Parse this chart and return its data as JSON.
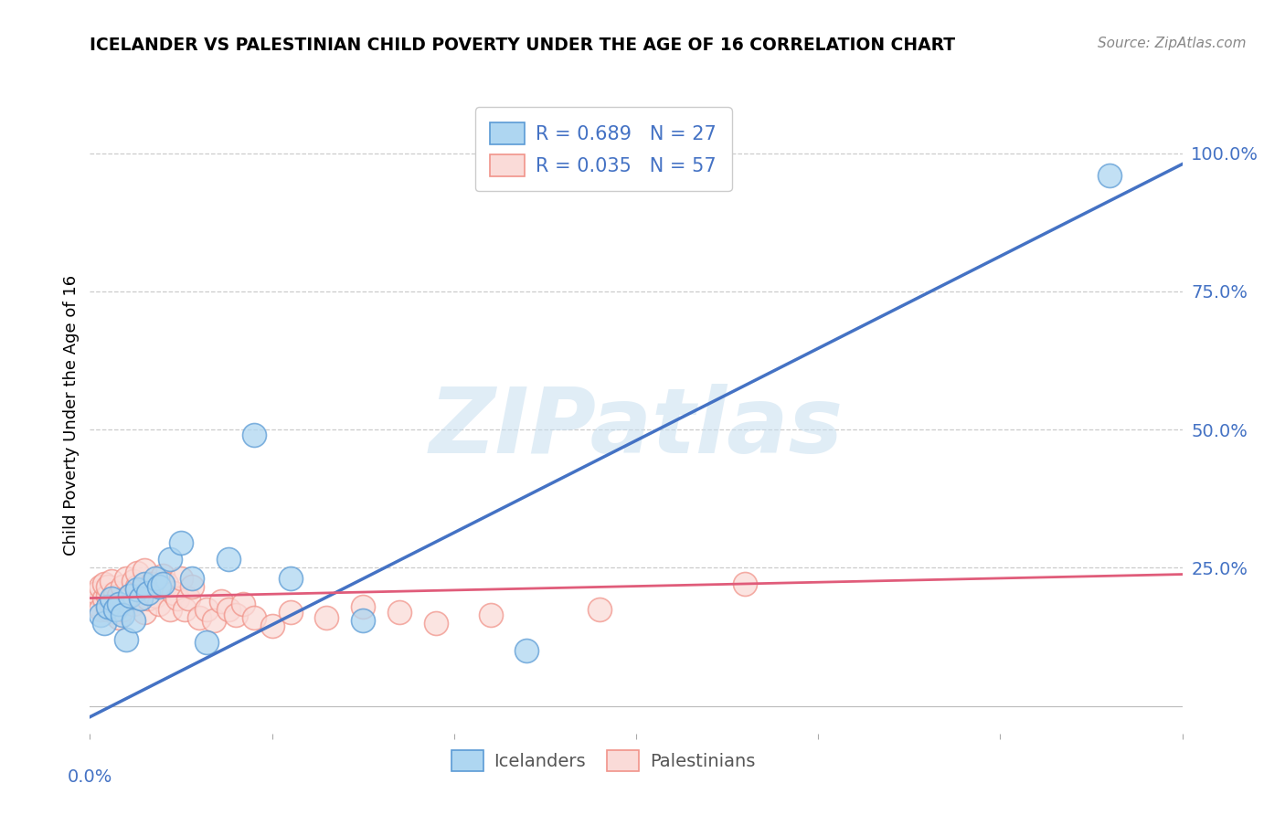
{
  "title": "ICELANDER VS PALESTINIAN CHILD POVERTY UNDER THE AGE OF 16 CORRELATION CHART",
  "source": "Source: ZipAtlas.com",
  "ylabel": "Child Poverty Under the Age of 16",
  "ytick_labels": [
    "0.0%",
    "25.0%",
    "50.0%",
    "75.0%",
    "100.0%"
  ],
  "ytick_positions": [
    0.0,
    0.25,
    0.5,
    0.75,
    1.0
  ],
  "xlim": [
    0.0,
    0.3
  ],
  "ylim": [
    -0.05,
    1.1
  ],
  "icelander_R": 0.689,
  "icelander_N": 27,
  "palestinian_R": 0.035,
  "palestinian_N": 57,
  "icelander_color": "#AED6F1",
  "icelander_edge_color": "#5B9BD5",
  "icelander_line_color": "#4472C4",
  "palestinian_color": "#FADBD8",
  "palestinian_edge_color": "#F1948A",
  "palestinian_line_color": "#E05C7A",
  "icelander_scatter_x": [
    0.003,
    0.004,
    0.005,
    0.006,
    0.007,
    0.008,
    0.009,
    0.01,
    0.011,
    0.012,
    0.013,
    0.014,
    0.015,
    0.016,
    0.018,
    0.019,
    0.02,
    0.022,
    0.025,
    0.028,
    0.032,
    0.038,
    0.045,
    0.055,
    0.075,
    0.12,
    0.28
  ],
  "icelander_scatter_y": [
    0.165,
    0.15,
    0.18,
    0.195,
    0.175,
    0.185,
    0.165,
    0.12,
    0.2,
    0.155,
    0.21,
    0.195,
    0.22,
    0.205,
    0.23,
    0.215,
    0.22,
    0.265,
    0.295,
    0.23,
    0.115,
    0.265,
    0.49,
    0.23,
    0.155,
    0.1,
    0.96
  ],
  "palestinian_scatter_x": [
    0.002,
    0.002,
    0.003,
    0.003,
    0.004,
    0.004,
    0.005,
    0.005,
    0.005,
    0.006,
    0.006,
    0.007,
    0.007,
    0.008,
    0.008,
    0.009,
    0.009,
    0.01,
    0.01,
    0.011,
    0.012,
    0.012,
    0.013,
    0.013,
    0.014,
    0.015,
    0.015,
    0.016,
    0.017,
    0.018,
    0.019,
    0.02,
    0.021,
    0.022,
    0.023,
    0.024,
    0.025,
    0.026,
    0.027,
    0.028,
    0.03,
    0.032,
    0.034,
    0.036,
    0.038,
    0.04,
    0.042,
    0.045,
    0.05,
    0.055,
    0.065,
    0.075,
    0.085,
    0.095,
    0.11,
    0.14,
    0.18
  ],
  "palestinian_scatter_y": [
    0.185,
    0.205,
    0.175,
    0.215,
    0.195,
    0.22,
    0.175,
    0.2,
    0.215,
    0.185,
    0.225,
    0.17,
    0.205,
    0.16,
    0.2,
    0.175,
    0.215,
    0.19,
    0.23,
    0.2,
    0.185,
    0.225,
    0.215,
    0.24,
    0.195,
    0.17,
    0.245,
    0.195,
    0.22,
    0.2,
    0.185,
    0.235,
    0.22,
    0.175,
    0.205,
    0.195,
    0.23,
    0.175,
    0.195,
    0.215,
    0.16,
    0.175,
    0.155,
    0.19,
    0.175,
    0.165,
    0.185,
    0.16,
    0.145,
    0.17,
    0.16,
    0.18,
    0.17,
    0.15,
    0.165,
    0.175,
    0.22
  ],
  "blue_line_x": [
    0.0,
    0.3
  ],
  "blue_line_y": [
    -0.02,
    0.98
  ],
  "pink_line_x": [
    0.0,
    0.3
  ],
  "pink_line_y": [
    0.195,
    0.238
  ],
  "watermark": "ZIPatlas",
  "legend_label_icelander": "Icelanders",
  "legend_label_palestinian": "Palestinians",
  "background_color": "#FFFFFF",
  "grid_color": "#CCCCCC",
  "tick_color": "#4472C4",
  "title_color": "#000000",
  "ylabel_color": "#000000"
}
